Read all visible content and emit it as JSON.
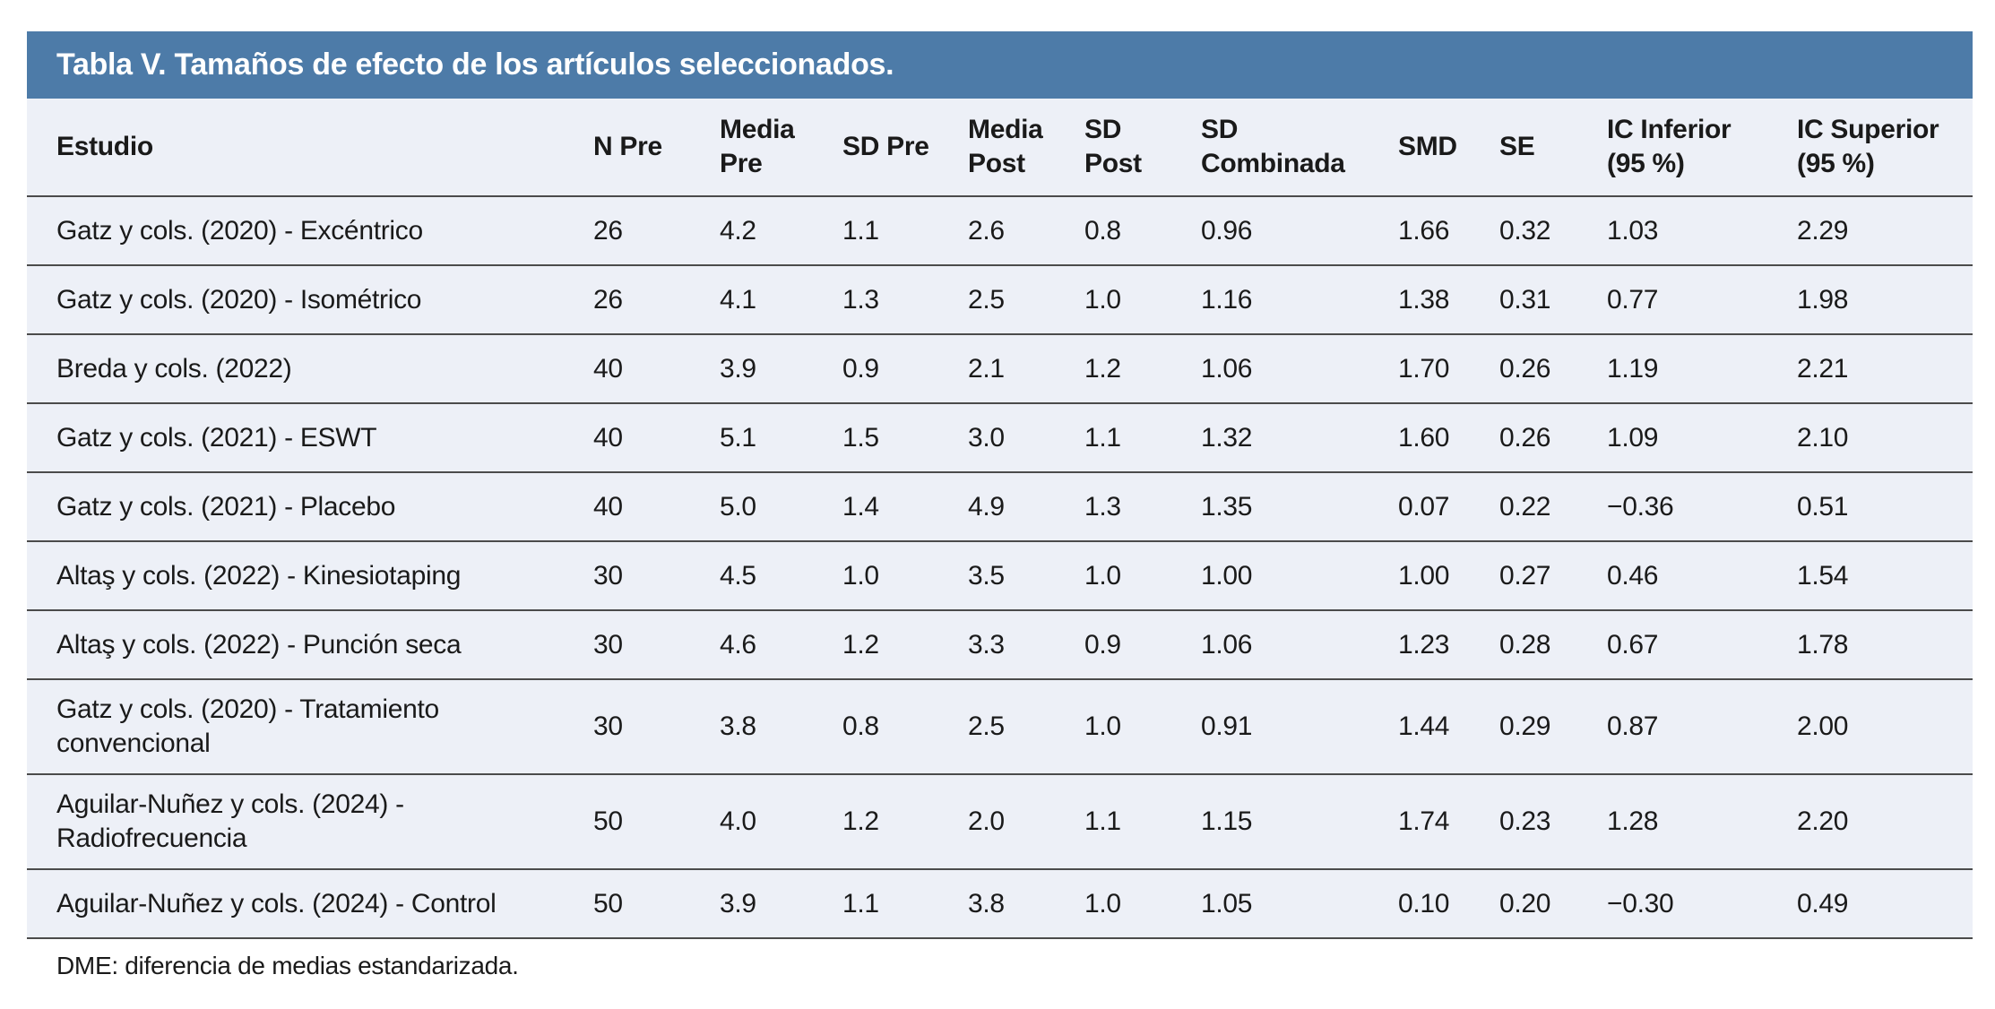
{
  "table": {
    "title": "Tabla V. Tamaños de efecto de los artículos seleccionados.",
    "columns": [
      "Estudio",
      "N Pre",
      "Media Pre",
      "SD Pre",
      "Media Post",
      "SD Post",
      "SD Combinada",
      "SMD",
      "SE",
      "IC Inferior (95 %)",
      "IC Superior (95 %)"
    ],
    "rows": [
      [
        "Gatz y cols. (2020) - Excéntrico",
        "26",
        "4.2",
        "1.1",
        "2.6",
        "0.8",
        "0.96",
        "1.66",
        "0.32",
        "1.03",
        "2.29"
      ],
      [
        "Gatz y cols. (2020) - Isométrico",
        "26",
        "4.1",
        "1.3",
        "2.5",
        "1.0",
        "1.16",
        "1.38",
        "0.31",
        "0.77",
        "1.98"
      ],
      [
        "Breda y cols. (2022)",
        "40",
        "3.9",
        "0.9",
        "2.1",
        "1.2",
        "1.06",
        "1.70",
        "0.26",
        "1.19",
        "2.21"
      ],
      [
        "Gatz y cols. (2021) - ESWT",
        "40",
        "5.1",
        "1.5",
        "3.0",
        "1.1",
        "1.32",
        "1.60",
        "0.26",
        "1.09",
        "2.10"
      ],
      [
        "Gatz y cols. (2021) - Placebo",
        "40",
        "5.0",
        "1.4",
        "4.9",
        "1.3",
        "1.35",
        "0.07",
        "0.22",
        "−0.36",
        "0.51"
      ],
      [
        "Altaş y cols. (2022) - Kinesiotaping",
        "30",
        "4.5",
        "1.0",
        "3.5",
        "1.0",
        "1.00",
        "1.00",
        "0.27",
        "0.46",
        "1.54"
      ],
      [
        "Altaş y cols. (2022) - Punción seca",
        "30",
        "4.6",
        "1.2",
        "3.3",
        "0.9",
        "1.06",
        "1.23",
        "0.28",
        "0.67",
        "1.78"
      ],
      [
        "Gatz y cols. (2020) - Tratamiento convencional",
        "30",
        "3.8",
        "0.8",
        "2.5",
        "1.0",
        "0.91",
        "1.44",
        "0.29",
        "0.87",
        "2.00"
      ],
      [
        "Aguilar-Nuñez y cols. (2024) - Radiofrecuencia",
        "50",
        "4.0",
        "1.2",
        "2.0",
        "1.1",
        "1.15",
        "1.74",
        "0.23",
        "1.28",
        "2.20"
      ],
      [
        "Aguilar-Nuñez y cols. (2024) - Control",
        "50",
        "3.9",
        "1.1",
        "3.8",
        "1.0",
        "1.05",
        "0.10",
        "0.20",
        "−0.30",
        "0.49"
      ]
    ],
    "footnote": "DME: diferencia de medias estandarizada."
  },
  "colors": {
    "title_bar_bg": "#4d7ba8",
    "title_text": "#ffffff",
    "row_bg": "#edf0f7",
    "divider": "#4b4b4b",
    "body_text": "#1a1a1a"
  }
}
